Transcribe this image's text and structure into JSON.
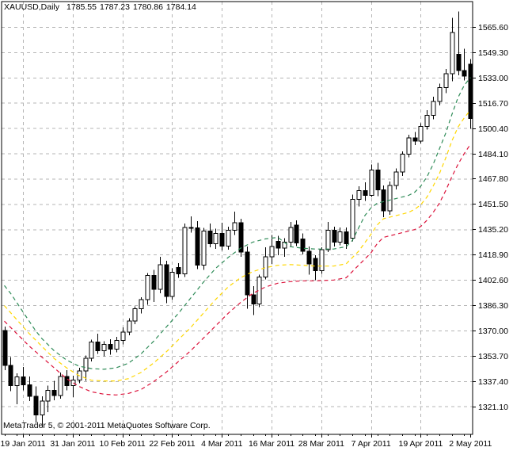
{
  "header": {
    "symbol_period": "XAUUSD,Daily",
    "quote_open": "1785.55",
    "quote_high": "1787.23",
    "quote_low": "1780.86",
    "quote_close": "1784.14"
  },
  "watermark": "MetaTrader 5, © 2001-2011 MetaQuotes Software Corp.",
  "chart_data": {
    "type": "candlestick",
    "title": "XAUUSD,Daily",
    "symbol": "XAUUSD",
    "timeframe": "Daily",
    "current_quote": {
      "open": 1785.55,
      "high": 1787.23,
      "low": 1780.86,
      "close": 1784.14
    },
    "grid": true,
    "legend_position": "none",
    "y_axis": {
      "side": "right",
      "top_price": 1581.9,
      "bottom_price": 1303.1,
      "tick_prices": [
        1565.6,
        1549.3,
        1533.0,
        1516.7,
        1500.4,
        1484.1,
        1467.8,
        1451.5,
        1435.2,
        1418.9,
        1402.6,
        1386.3,
        1370.0,
        1353.7,
        1337.4,
        1321.1
      ]
    },
    "x_axis": {
      "tick_labels": [
        "19 Jan 2011",
        "31 Jan 2011",
        "10 Feb 2011",
        "22 Feb 2011",
        "4 Mar 2011",
        "16 Mar 2011",
        "28 Mar 2011",
        "7 Apr 2011",
        "19 Apr 2011",
        "2 May 2011"
      ],
      "tick_indices": [
        3,
        11,
        19,
        27,
        35,
        43,
        51,
        59,
        67,
        75
      ]
    },
    "candles": [
      [
        1370.0,
        1372.5,
        1344.5,
        1347.5
      ],
      [
        1347.5,
        1353.0,
        1331.0,
        1334.5
      ],
      [
        1334.5,
        1342.5,
        1322.5,
        1340.0
      ],
      [
        1340.0,
        1346.5,
        1331.5,
        1335.0
      ],
      [
        1335.0,
        1340.5,
        1324.5,
        1327.5
      ],
      [
        1327.5,
        1334.0,
        1310.5,
        1315.5
      ],
      [
        1315.5,
        1327.5,
        1307.5,
        1324.5
      ],
      [
        1324.5,
        1334.5,
        1317.5,
        1331.5
      ],
      [
        1331.5,
        1337.5,
        1325.0,
        1328.0
      ],
      [
        1328.0,
        1343.0,
        1326.0,
        1340.5
      ],
      [
        1340.5,
        1344.5,
        1331.5,
        1334.5
      ],
      [
        1334.5,
        1341.0,
        1327.0,
        1338.0
      ],
      [
        1338.0,
        1346.0,
        1336.0,
        1344.0
      ],
      [
        1344.0,
        1354.0,
        1337.5,
        1352.0
      ],
      [
        1352.0,
        1364.0,
        1350.0,
        1362.5
      ],
      [
        1362.5,
        1368.0,
        1355.0,
        1357.0
      ],
      [
        1357.0,
        1363.0,
        1353.5,
        1361.0
      ],
      [
        1361.0,
        1364.5,
        1354.5,
        1358.0
      ],
      [
        1358.0,
        1366.0,
        1356.0,
        1363.5
      ],
      [
        1363.5,
        1372.0,
        1361.0,
        1369.0
      ],
      [
        1369.0,
        1378.0,
        1367.0,
        1376.0
      ],
      [
        1376.0,
        1385.5,
        1374.0,
        1384.0
      ],
      [
        1384.0,
        1391.5,
        1381.0,
        1390.0
      ],
      [
        1390.0,
        1407.0,
        1386.5,
        1405.5
      ],
      [
        1405.5,
        1409.0,
        1388.5,
        1396.5
      ],
      [
        1396.5,
        1417.5,
        1394.0,
        1412.5
      ],
      [
        1412.5,
        1415.0,
        1387.5,
        1392.0
      ],
      [
        1392.0,
        1410.0,
        1390.0,
        1407.5
      ],
      [
        1410.5,
        1413.5,
        1404.0,
        1406.5
      ],
      [
        1406.5,
        1439.0,
        1404.5,
        1436.5
      ],
      [
        1436.5,
        1443.5,
        1433.0,
        1436.0
      ],
      [
        1436.0,
        1440.5,
        1409.5,
        1412.0
      ],
      [
        1412.0,
        1436.0,
        1409.0,
        1434.0
      ],
      [
        1434.0,
        1439.0,
        1423.5,
        1426.0
      ],
      [
        1426.0,
        1435.5,
        1422.5,
        1432.5
      ],
      [
        1432.5,
        1439.5,
        1421.5,
        1424.5
      ],
      [
        1424.5,
        1437.0,
        1422.0,
        1434.5
      ],
      [
        1434.5,
        1446.5,
        1431.5,
        1439.5
      ],
      [
        1439.5,
        1442.0,
        1417.5,
        1420.5
      ],
      [
        1420.5,
        1424.0,
        1384.0,
        1393.0
      ],
      [
        1393.0,
        1398.5,
        1380.0,
        1387.0
      ],
      [
        1387.0,
        1406.0,
        1385.0,
        1404.5
      ],
      [
        1404.5,
        1423.5,
        1403.0,
        1417.5
      ],
      [
        1417.5,
        1431.5,
        1413.0,
        1424.0
      ],
      [
        1427.5,
        1431.0,
        1418.5,
        1423.0
      ],
      [
        1423.0,
        1429.5,
        1417.5,
        1427.0
      ],
      [
        1427.0,
        1440.0,
        1424.0,
        1436.5
      ],
      [
        1438.0,
        1441.0,
        1424.5,
        1426.5
      ],
      [
        1429.0,
        1432.5,
        1419.0,
        1421.0
      ],
      [
        1421.0,
        1424.0,
        1406.0,
        1413.0
      ],
      [
        1416.5,
        1418.5,
        1402.5,
        1408.5
      ],
      [
        1408.5,
        1423.5,
        1406.5,
        1422.0
      ],
      [
        1422.0,
        1440.0,
        1420.5,
        1434.5
      ],
      [
        1434.5,
        1437.0,
        1424.0,
        1427.0
      ],
      [
        1427.0,
        1436.5,
        1425.0,
        1433.5
      ],
      [
        1433.5,
        1436.5,
        1422.5,
        1426.0
      ],
      [
        1429.5,
        1457.5,
        1427.5,
        1454.5
      ],
      [
        1454.5,
        1463.0,
        1450.0,
        1460.0
      ],
      [
        1460.0,
        1465.5,
        1453.5,
        1457.0
      ],
      [
        1457.0,
        1477.0,
        1456.0,
        1473.5
      ],
      [
        1473.5,
        1478.0,
        1456.5,
        1460.5
      ],
      [
        1460.5,
        1463.5,
        1443.0,
        1447.0
      ],
      [
        1447.0,
        1466.0,
        1444.5,
        1463.5
      ],
      [
        1463.5,
        1474.5,
        1461.0,
        1472.0
      ],
      [
        1472.0,
        1485.5,
        1469.5,
        1483.5
      ],
      [
        1483.5,
        1496.0,
        1481.5,
        1494.0
      ],
      [
        1494.0,
        1498.0,
        1489.5,
        1492.0
      ],
      [
        1492.0,
        1503.5,
        1490.5,
        1501.5
      ],
      [
        1501.5,
        1512.0,
        1499.5,
        1508.5
      ],
      [
        1508.5,
        1520.5,
        1506.0,
        1517.5
      ],
      [
        1517.5,
        1529.0,
        1515.0,
        1526.5
      ],
      [
        1526.5,
        1538.5,
        1523.0,
        1535.5
      ],
      [
        1535.5,
        1571.5,
        1530.5,
        1562.0
      ],
      [
        1548.0,
        1575.5,
        1534.5,
        1537.5
      ],
      [
        1537.5,
        1551.5,
        1531.0,
        1534.0
      ],
      [
        1541.5,
        1545.0,
        1500.0,
        1506.5
      ]
    ],
    "indicators": [
      {
        "name": "upper-dashed-ma-green",
        "color": "#2e8b57",
        "line_style": "dashed",
        "points": [
          [
            0,
            1399
          ],
          [
            1,
            1394
          ],
          [
            2,
            1388
          ],
          [
            3,
            1382
          ],
          [
            4,
            1376
          ],
          [
            5,
            1370
          ],
          [
            6,
            1365
          ],
          [
            8,
            1357
          ],
          [
            10,
            1351
          ],
          [
            12,
            1347
          ],
          [
            14,
            1345.5
          ],
          [
            16,
            1345
          ],
          [
            18,
            1346
          ],
          [
            20,
            1349
          ],
          [
            22,
            1355
          ],
          [
            24,
            1363
          ],
          [
            26,
            1372
          ],
          [
            28,
            1381
          ],
          [
            30,
            1391
          ],
          [
            32,
            1401
          ],
          [
            34,
            1410
          ],
          [
            36,
            1417
          ],
          [
            38,
            1423
          ],
          [
            40,
            1427
          ],
          [
            42,
            1429
          ],
          [
            44,
            1430
          ],
          [
            45,
            1427
          ],
          [
            46,
            1424
          ],
          [
            48,
            1423
          ],
          [
            50,
            1422.5
          ],
          [
            53,
            1422.5
          ],
          [
            55,
            1424
          ],
          [
            56,
            1428
          ],
          [
            57,
            1436
          ],
          [
            58,
            1444
          ],
          [
            59,
            1449
          ],
          [
            60,
            1452
          ],
          [
            62,
            1454
          ],
          [
            64,
            1456
          ],
          [
            65,
            1457
          ],
          [
            66,
            1459
          ],
          [
            67,
            1463
          ],
          [
            68,
            1469
          ],
          [
            69,
            1477
          ],
          [
            70,
            1487
          ],
          [
            71,
            1497
          ],
          [
            72,
            1509
          ],
          [
            73,
            1520
          ],
          [
            74,
            1528
          ],
          [
            75,
            1533
          ]
        ]
      },
      {
        "name": "middle-dashed-ma-yellow",
        "color": "#ffd700",
        "line_style": "dashed",
        "points": [
          [
            0,
            1386
          ],
          [
            2,
            1377
          ],
          [
            4,
            1368
          ],
          [
            6,
            1360
          ],
          [
            8,
            1352
          ],
          [
            10,
            1346
          ],
          [
            12,
            1341
          ],
          [
            14,
            1338
          ],
          [
            16,
            1337.5
          ],
          [
            18,
            1337.5
          ],
          [
            20,
            1339
          ],
          [
            22,
            1343
          ],
          [
            24,
            1349
          ],
          [
            26,
            1356
          ],
          [
            28,
            1364
          ],
          [
            30,
            1372
          ],
          [
            32,
            1381
          ],
          [
            34,
            1390
          ],
          [
            36,
            1398
          ],
          [
            38,
            1404
          ],
          [
            40,
            1408
          ],
          [
            42,
            1410.5
          ],
          [
            44,
            1412
          ],
          [
            46,
            1412.5
          ],
          [
            48,
            1412
          ],
          [
            50,
            1411.5
          ],
          [
            53,
            1411.5
          ],
          [
            55,
            1413
          ],
          [
            57,
            1421
          ],
          [
            59,
            1432
          ],
          [
            60,
            1438
          ],
          [
            61,
            1442
          ],
          [
            63,
            1444
          ],
          [
            65,
            1446
          ],
          [
            66,
            1448
          ],
          [
            67,
            1451
          ],
          [
            68,
            1456
          ],
          [
            69,
            1463
          ],
          [
            70,
            1471
          ],
          [
            71,
            1481
          ],
          [
            72,
            1492
          ],
          [
            73,
            1501
          ],
          [
            74,
            1507
          ],
          [
            75,
            1512
          ]
        ]
      },
      {
        "name": "lower-dashed-ma-red",
        "color": "#dc143c",
        "line_style": "dashed",
        "points": [
          [
            0,
            1376
          ],
          [
            2,
            1368
          ],
          [
            4,
            1360
          ],
          [
            6,
            1353
          ],
          [
            8,
            1346
          ],
          [
            10,
            1339
          ],
          [
            12,
            1334
          ],
          [
            14,
            1330.5
          ],
          [
            16,
            1329
          ],
          [
            18,
            1328.5
          ],
          [
            20,
            1329.5
          ],
          [
            22,
            1332
          ],
          [
            24,
            1337
          ],
          [
            26,
            1343
          ],
          [
            28,
            1350
          ],
          [
            30,
            1357
          ],
          [
            32,
            1365
          ],
          [
            34,
            1373
          ],
          [
            36,
            1381
          ],
          [
            38,
            1388
          ],
          [
            40,
            1394
          ],
          [
            42,
            1398
          ],
          [
            44,
            1400.5
          ],
          [
            46,
            1401.5
          ],
          [
            48,
            1402
          ],
          [
            50,
            1402
          ],
          [
            53,
            1402.5
          ],
          [
            55,
            1404
          ],
          [
            57,
            1412
          ],
          [
            59,
            1420
          ],
          [
            60,
            1426
          ],
          [
            61,
            1430
          ],
          [
            63,
            1432
          ],
          [
            65,
            1434
          ],
          [
            66,
            1435
          ],
          [
            67,
            1437
          ],
          [
            68,
            1441
          ],
          [
            69,
            1446
          ],
          [
            70,
            1452
          ],
          [
            71,
            1460
          ],
          [
            72,
            1469
          ],
          [
            73,
            1477
          ],
          [
            74,
            1484
          ],
          [
            75,
            1490
          ]
        ]
      }
    ],
    "colors": {
      "background": "#ffffff",
      "border": "#000000",
      "grid": "#b5b5b5",
      "bull_fill": "#ffffff",
      "bear_fill": "#000000",
      "candle_outline": "#000000",
      "wick": "#000000",
      "axis_text": "#000000"
    }
  }
}
